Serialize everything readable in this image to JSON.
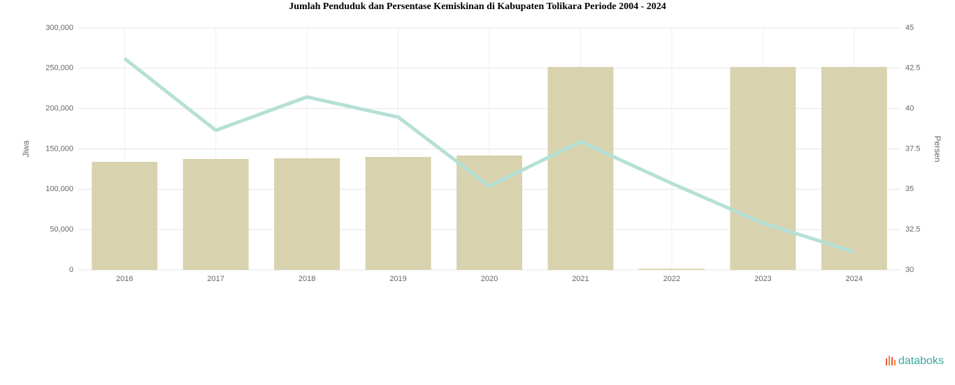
{
  "chart_data": {
    "type": "bar-line",
    "title": "Jumlah Penduduk dan Persentase Kemiskinan di Kabupaten Tolikara Periode 2004 - 2024",
    "categories": [
      "2016",
      "2017",
      "2018",
      "2019",
      "2020",
      "2021",
      "2022",
      "2023",
      "2024"
    ],
    "series": [
      {
        "name": "Jiwa",
        "color": "#d8d2ae",
        "type": "bar",
        "values": [
          134000,
          137500,
          138300,
          140000,
          141800,
          251600,
          1500,
          251600,
          251600
        ]
      },
      {
        "name": "Persen",
        "color": "#b5e0d6",
        "type": "line",
        "axis": "y2",
        "values": [
          43.1,
          38.65,
          40.72,
          39.47,
          35.19,
          37.95,
          35.36,
          32.9,
          31.12
        ]
      }
    ],
    "ylabel": "Jiwa",
    "y2label": "Persen",
    "ylim": [
      0,
      300000
    ],
    "yticks": [
      0,
      {
        "value": 50000,
        "label": "50,000"
      },
      {
        "value": 100000,
        "label": "100,000"
      },
      {
        "value": 150000,
        "label": "150,000"
      },
      {
        "value": 200000,
        "label": "200,000"
      },
      {
        "value": 250000,
        "label": "250,000"
      },
      {
        "value": 300000,
        "label": "300,000"
      }
    ],
    "y2lim": [
      30,
      45
    ],
    "y2ticks": [
      30,
      32.5,
      35,
      37.5,
      40,
      42.5,
      45
    ],
    "grid": true
  },
  "brand": "databoks"
}
